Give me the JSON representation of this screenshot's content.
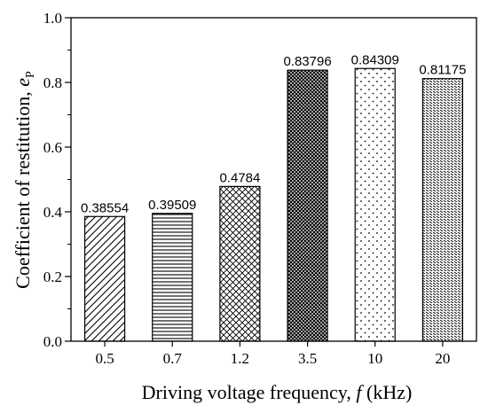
{
  "chart_data": {
    "type": "bar",
    "categories": [
      "0.5",
      "0.7",
      "1.2",
      "3.5",
      "10",
      "20"
    ],
    "values": [
      0.38554,
      0.39509,
      0.4784,
      0.83796,
      0.84309,
      0.81175
    ],
    "data_labels": [
      "0.38554",
      "0.39509",
      "0.4784",
      "0.83796",
      "0.84309",
      "0.81175"
    ],
    "xlabel": {
      "text": "Driving voltage frequency, ",
      "variable": "f",
      "unit": " (kHz)"
    },
    "ylabel": {
      "text": "Coefficient of restitution, ",
      "variable": "e",
      "subscript": "P"
    },
    "ylim": [
      0.0,
      1.0
    ],
    "yticks": [
      "0.0",
      "0.2",
      "0.4",
      "0.6",
      "0.8",
      "1.0"
    ],
    "grid": false,
    "legend": "none",
    "bar_patterns": [
      "diagonal-right",
      "horizontal",
      "crosshatch-light",
      "crosshatch-dense",
      "dots-sparse",
      "diagonal-dashed"
    ],
    "colors": {
      "stroke": "#000000",
      "fill": "#ffffff"
    }
  }
}
